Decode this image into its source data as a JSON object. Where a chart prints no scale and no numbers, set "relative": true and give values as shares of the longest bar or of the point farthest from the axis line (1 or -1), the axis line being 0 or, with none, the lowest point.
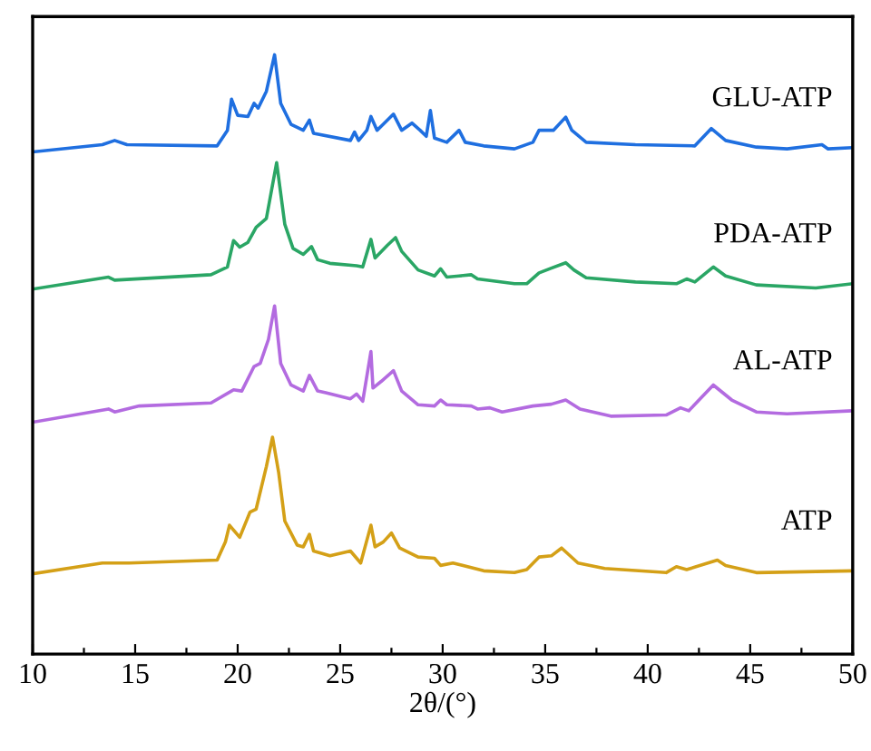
{
  "chart_data": {
    "type": "line",
    "relative": true,
    "xlabel": "2θ/(°)",
    "xlim": [
      10,
      50
    ],
    "xticks": [
      10,
      {
        "value": 12.5,
        "label": null
      },
      15,
      {
        "value": 17.5,
        "label": null
      },
      20,
      {
        "value": 22.5,
        "label": null
      },
      25,
      {
        "value": 27.5,
        "label": null
      },
      30,
      {
        "value": 32.5,
        "label": null
      },
      35,
      {
        "value": 37.5,
        "label": null
      },
      40,
      {
        "value": 42.5,
        "label": null
      },
      45,
      {
        "value": 47.5,
        "label": null
      },
      50
    ],
    "tick_labels": "x",
    "grid": false,
    "legend": false,
    "marker": "none",
    "line_style": "solid",
    "series": [
      {
        "name": "GLU-ATP",
        "color": "#1f6fe0",
        "x": [
          10.0,
          13.4,
          14.0,
          14.6,
          19.0,
          19.5,
          19.7,
          20.0,
          20.5,
          20.8,
          21.0,
          21.4,
          21.8,
          22.1,
          22.6,
          23.2,
          23.5,
          23.7,
          25.5,
          25.7,
          25.9,
          26.3,
          26.5,
          26.8,
          27.1,
          27.6,
          28.0,
          28.5,
          28.9,
          29.2,
          29.4,
          29.6,
          30.2,
          30.8,
          31.1,
          32.0,
          33.5,
          34.4,
          34.7,
          35.4,
          36.0,
          36.3,
          37.0,
          39.4,
          42.3,
          43.1,
          43.8,
          45.3,
          46.8,
          48.5,
          48.8,
          50.0
        ],
        "values": [
          0.838,
          0.85,
          0.857,
          0.85,
          0.848,
          0.874,
          0.926,
          0.899,
          0.897,
          0.919,
          0.911,
          0.939,
          1.0,
          0.919,
          0.884,
          0.874,
          0.891,
          0.869,
          0.857,
          0.871,
          0.857,
          0.874,
          0.897,
          0.874,
          0.884,
          0.901,
          0.874,
          0.886,
          0.874,
          0.864,
          0.907,
          0.861,
          0.854,
          0.874,
          0.854,
          0.848,
          0.843,
          0.854,
          0.874,
          0.874,
          0.896,
          0.874,
          0.854,
          0.85,
          0.848,
          0.877,
          0.857,
          0.846,
          0.843,
          0.85,
          0.843,
          0.845
        ]
      },
      {
        "name": "PDA-ATP",
        "color": "#2aa665",
        "x": [
          10.0,
          13.7,
          14.0,
          18.7,
          19.5,
          19.8,
          20.1,
          20.5,
          20.9,
          21.4,
          21.9,
          22.3,
          22.7,
          23.2,
          23.6,
          23.9,
          24.5,
          25.8,
          26.1,
          26.5,
          26.7,
          27.3,
          27.7,
          28.0,
          28.8,
          29.6,
          29.9,
          30.2,
          30.8,
          31.4,
          31.7,
          33.5,
          34.1,
          34.7,
          35.3,
          36.0,
          36.4,
          37.0,
          39.4,
          41.4,
          41.9,
          42.3,
          43.2,
          43.8,
          45.3,
          48.2,
          50.0
        ],
        "values": [
          0.609,
          0.629,
          0.624,
          0.633,
          0.646,
          0.69,
          0.679,
          0.687,
          0.712,
          0.727,
          0.82,
          0.717,
          0.677,
          0.667,
          0.68,
          0.658,
          0.652,
          0.648,
          0.646,
          0.692,
          0.661,
          0.682,
          0.695,
          0.672,
          0.641,
          0.631,
          0.643,
          0.629,
          0.631,
          0.633,
          0.626,
          0.618,
          0.618,
          0.636,
          0.644,
          0.653,
          0.641,
          0.628,
          0.621,
          0.618,
          0.626,
          0.621,
          0.646,
          0.631,
          0.616,
          0.611,
          0.618
        ]
      },
      {
        "name": "AL-ATP",
        "color": "#b36be0",
        "x": [
          10.0,
          13.7,
          14.0,
          15.2,
          18.7,
          19.8,
          20.2,
          20.8,
          21.1,
          21.5,
          21.8,
          22.1,
          22.6,
          23.2,
          23.5,
          23.9,
          24.3,
          25.5,
          25.8,
          26.1,
          26.5,
          26.6,
          27.0,
          27.6,
          28.0,
          28.8,
          29.6,
          29.9,
          30.2,
          31.4,
          31.7,
          32.3,
          32.9,
          34.4,
          35.3,
          36.0,
          36.7,
          38.2,
          40.9,
          41.6,
          42.0,
          43.2,
          44.1,
          45.3,
          46.8,
          50.0
        ],
        "values": [
          0.387,
          0.409,
          0.404,
          0.414,
          0.419,
          0.441,
          0.439,
          0.48,
          0.485,
          0.525,
          0.581,
          0.485,
          0.449,
          0.439,
          0.465,
          0.439,
          0.436,
          0.426,
          0.434,
          0.422,
          0.505,
          0.444,
          0.455,
          0.473,
          0.439,
          0.416,
          0.414,
          0.424,
          0.416,
          0.414,
          0.409,
          0.411,
          0.404,
          0.414,
          0.417,
          0.424,
          0.409,
          0.397,
          0.399,
          0.411,
          0.406,
          0.449,
          0.424,
          0.404,
          0.401,
          0.406
        ]
      },
      {
        "name": "ATP",
        "color": "#d4a017",
        "x": [
          10.0,
          13.4,
          14.7,
          19.0,
          19.4,
          19.6,
          20.1,
          20.6,
          20.9,
          21.4,
          21.7,
          22.0,
          22.3,
          22.9,
          23.2,
          23.5,
          23.7,
          24.5,
          25.5,
          26.0,
          26.5,
          26.7,
          27.1,
          27.5,
          27.9,
          28.8,
          29.6,
          29.9,
          30.5,
          32.0,
          33.5,
          34.1,
          34.7,
          35.3,
          35.8,
          36.6,
          37.9,
          40.9,
          41.4,
          41.9,
          43.4,
          43.8,
          45.3,
          50.0
        ],
        "values": [
          0.134,
          0.152,
          0.152,
          0.157,
          0.187,
          0.215,
          0.195,
          0.237,
          0.242,
          0.313,
          0.362,
          0.303,
          0.222,
          0.182,
          0.179,
          0.2,
          0.172,
          0.164,
          0.172,
          0.152,
          0.215,
          0.179,
          0.187,
          0.202,
          0.177,
          0.162,
          0.16,
          0.148,
          0.152,
          0.139,
          0.136,
          0.141,
          0.162,
          0.164,
          0.177,
          0.152,
          0.143,
          0.136,
          0.146,
          0.141,
          0.157,
          0.148,
          0.136,
          0.139
        ]
      }
    ]
  }
}
